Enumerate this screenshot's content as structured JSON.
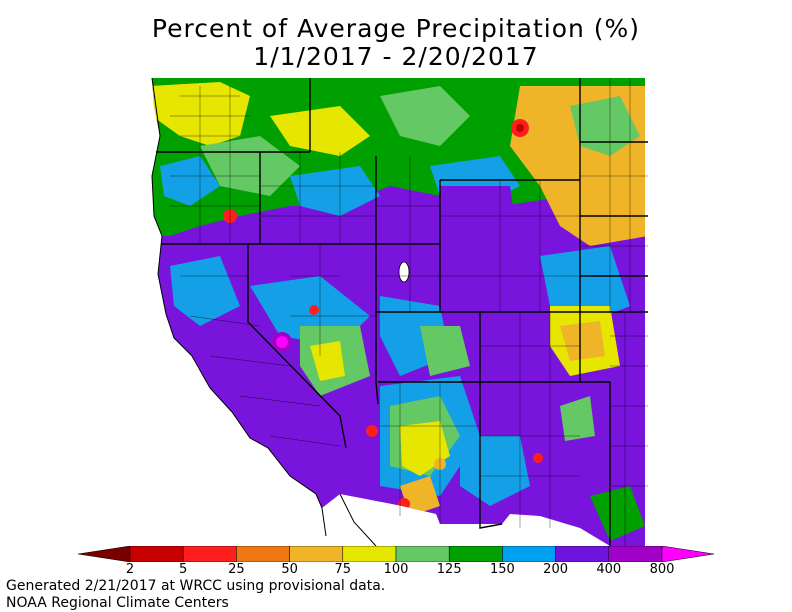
{
  "title_line1": "Percent of Average Precipitation (%)",
  "title_line2": "1/1/2017 - 2/20/2017",
  "legend": {
    "ticks": [
      "2",
      "5",
      "25",
      "50",
      "75",
      "100",
      "125",
      "150",
      "200",
      "400",
      "800"
    ],
    "colors": [
      "#7a0000",
      "#c80000",
      "#ff1e1e",
      "#f07814",
      "#f0b428",
      "#e6e600",
      "#64c864",
      "#00a000",
      "#00a0f0",
      "#6e14dc",
      "#a000c8",
      "#ff00ff"
    ]
  },
  "footer": {
    "line1": "Generated 2/21/2017 at WRCC using provisional data.",
    "line2": "NOAA Regional Climate Centers"
  },
  "map_palette": {
    "purple": "#7814dc",
    "blue": "#14a0e6",
    "green": "#00a000",
    "lightgreen": "#64c864",
    "yellow": "#e6e600",
    "orange": "#f0b428",
    "red": "#ff1e1e",
    "magenta": "#ff00ff",
    "darkred": "#c80000"
  }
}
